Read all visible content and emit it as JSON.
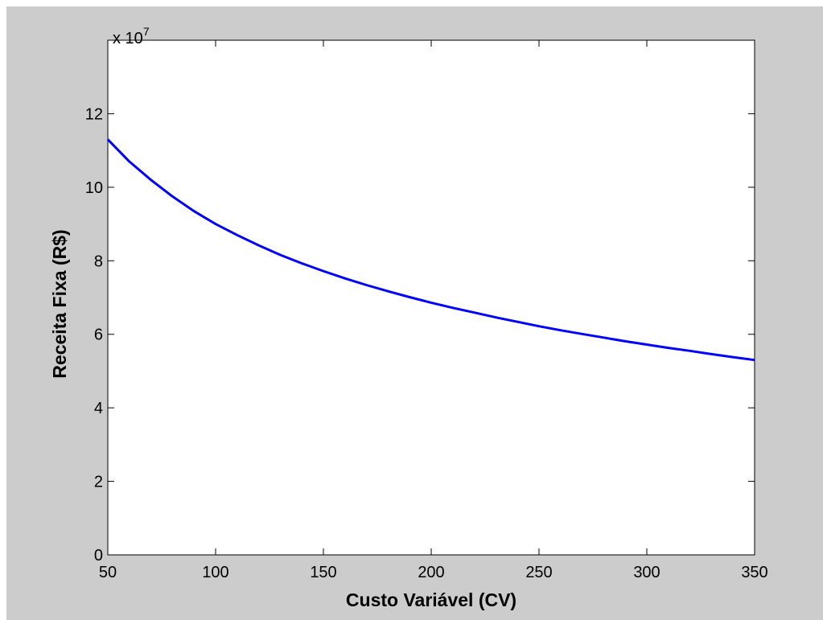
{
  "chart_data": {
    "type": "line",
    "title": "",
    "xlabel": "Custo Variável (CV)",
    "ylabel": "Receita Fixa (R$)",
    "y_multiplier_label": "x 10",
    "y_multiplier_exponent": "7",
    "xlim": [
      50,
      350
    ],
    "ylim": [
      0,
      14
    ],
    "xticks": [
      50,
      100,
      150,
      200,
      250,
      300,
      350
    ],
    "xtick_labels": [
      "50",
      "100",
      "150",
      "200",
      "250",
      "300",
      "350"
    ],
    "yticks": [
      0,
      2,
      4,
      6,
      8,
      10,
      12
    ],
    "ytick_labels": [
      "0",
      "2",
      "4",
      "6",
      "8",
      "10",
      "12"
    ],
    "grid": false,
    "series": [
      {
        "color": "#0000ff",
        "x": [
          50,
          60,
          70,
          80,
          90,
          100,
          110,
          120,
          130,
          140,
          150,
          160,
          170,
          180,
          190,
          200,
          210,
          220,
          230,
          240,
          250,
          260,
          270,
          280,
          290,
          300,
          310,
          320,
          330,
          340,
          350
        ],
        "y": [
          11.3,
          10.7,
          10.2,
          9.75,
          9.35,
          9.0,
          8.7,
          8.42,
          8.16,
          7.93,
          7.72,
          7.52,
          7.34,
          7.17,
          7.01,
          6.86,
          6.72,
          6.59,
          6.46,
          6.34,
          6.22,
          6.11,
          6.01,
          5.91,
          5.81,
          5.72,
          5.63,
          5.55,
          5.46,
          5.38,
          5.3
        ]
      }
    ]
  }
}
